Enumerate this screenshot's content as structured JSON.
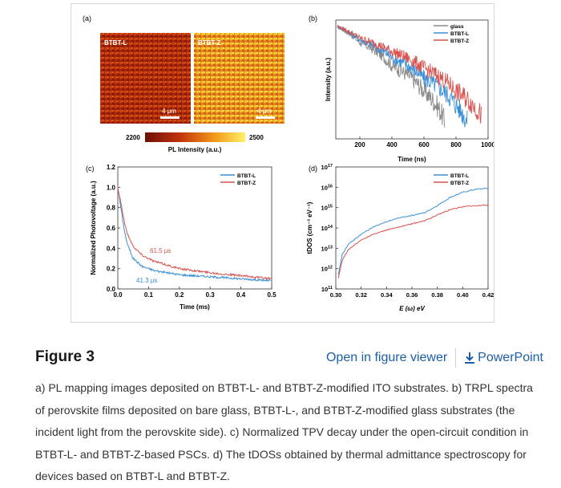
{
  "figure": {
    "heading": "Figure 3",
    "open_viewer_label": "Open in figure viewer",
    "powerpoint_label": "PowerPoint",
    "caption": "a) PL mapping images deposited on BTBT-L- and BTBT-Z-modified ITO substrates. b) TRPL spectra of perovskite films deposited on bare glass, BTBT-L-, and BTBT-Z-modified glass substrates (the incident light from the perovskite side). c) Normalized TPV decay under the open-circuit condition in BTBT-L- and BTBT-Z-based PSCs. d) The tDOSs obtained by thermal admittance spectroscopy for devices based on BTBT-L and BTBT-Z."
  },
  "colors": {
    "blue": "#3a8fd6",
    "red": "#d9534f",
    "gray": "#8a8a8a",
    "link": "#1b5fa8"
  },
  "chart_data": [
    {
      "panel": "(a)",
      "type": "heatmap",
      "images": [
        "BTBT-L",
        "BTBT-Z"
      ],
      "scale_bar": "4 μm",
      "colorbar_min": "2200",
      "colorbar_max": "2500",
      "colorbar_label": "PL Intensity (a.u.)"
    },
    {
      "panel": "(b)",
      "type": "line",
      "xlabel": "Time (ns)",
      "ylabel": "Intensity (a.u.)",
      "xlim": [
        50,
        1000
      ],
      "xticks": [
        "200",
        "400",
        "600",
        "800",
        "1000"
      ],
      "yscale": "log",
      "series": [
        {
          "name": "glass",
          "color": "#8a8a8a",
          "x": [
            60,
            200,
            400,
            600,
            730
          ],
          "y": [
            1.0,
            0.52,
            0.2,
            0.07,
            0.02
          ]
        },
        {
          "name": "BTBT-L",
          "color": "#3a8fd6",
          "x": [
            60,
            200,
            400,
            600,
            800,
            870
          ],
          "y": [
            1.0,
            0.58,
            0.28,
            0.12,
            0.04,
            0.02
          ]
        },
        {
          "name": "BTBT-Z",
          "color": "#d9534f",
          "x": [
            60,
            200,
            400,
            600,
            800,
            960
          ],
          "y": [
            1.0,
            0.62,
            0.36,
            0.18,
            0.07,
            0.025
          ]
        }
      ]
    },
    {
      "panel": "(c)",
      "type": "line",
      "xlabel": "Time (ms)",
      "ylabel": "Normalized Photovoltage (a.u.)",
      "xlim": [
        0,
        0.5
      ],
      "ylim": [
        0,
        1.2
      ],
      "xticks": [
        "0.0",
        "0.1",
        "0.2",
        "0.3",
        "0.4",
        "0.5"
      ],
      "yticks": [
        "0.0",
        "0.2",
        "0.4",
        "0.6",
        "0.8",
        "1.0",
        "1.2"
      ],
      "annotations": [
        "61.5 μs",
        "41.3 μs"
      ],
      "series": [
        {
          "name": "BTBT-L",
          "color": "#3a8fd6",
          "x": [
            0,
            0.01,
            0.02,
            0.03,
            0.05,
            0.08,
            0.12,
            0.2,
            0.3,
            0.4,
            0.5
          ],
          "y": [
            1.0,
            0.8,
            0.6,
            0.45,
            0.3,
            0.22,
            0.18,
            0.14,
            0.12,
            0.1,
            0.08
          ]
        },
        {
          "name": "BTBT-Z",
          "color": "#d9534f",
          "x": [
            0,
            0.01,
            0.02,
            0.03,
            0.05,
            0.08,
            0.12,
            0.2,
            0.3,
            0.4,
            0.5
          ],
          "y": [
            1.0,
            0.85,
            0.68,
            0.55,
            0.42,
            0.33,
            0.27,
            0.2,
            0.16,
            0.13,
            0.1
          ]
        }
      ]
    },
    {
      "panel": "(d)",
      "type": "line",
      "xlabel": "E (ω) eV",
      "ylabel": "tDOS (cm⁻³ eV⁻¹)",
      "xlim": [
        0.3,
        0.42
      ],
      "xticks": [
        "0.30",
        "0.32",
        "0.34",
        "0.36",
        "0.38",
        "0.40",
        "0.42"
      ],
      "ylim_log10": [
        11,
        17
      ],
      "ytick_exponents": [
        "11",
        "12",
        "13",
        "14",
        "15",
        "16",
        "17"
      ],
      "series": [
        {
          "name": "BTBT-L",
          "color": "#3a8fd6",
          "x": [
            0.302,
            0.305,
            0.31,
            0.32,
            0.33,
            0.34,
            0.35,
            0.36,
            0.37,
            0.38,
            0.39,
            0.4,
            0.41,
            0.42
          ],
          "log10y": [
            11.7,
            12.7,
            13.2,
            13.7,
            14.05,
            14.3,
            14.5,
            14.62,
            14.75,
            15.1,
            15.5,
            15.75,
            15.9,
            15.95
          ]
        },
        {
          "name": "BTBT-Z",
          "color": "#d9534f",
          "x": [
            0.302,
            0.305,
            0.31,
            0.32,
            0.33,
            0.34,
            0.35,
            0.36,
            0.37,
            0.38,
            0.39,
            0.4,
            0.41,
            0.42
          ],
          "log10y": [
            11.5,
            12.4,
            12.95,
            13.4,
            13.7,
            13.9,
            14.05,
            14.2,
            14.35,
            14.65,
            14.9,
            15.05,
            15.1,
            15.12
          ]
        }
      ]
    }
  ]
}
